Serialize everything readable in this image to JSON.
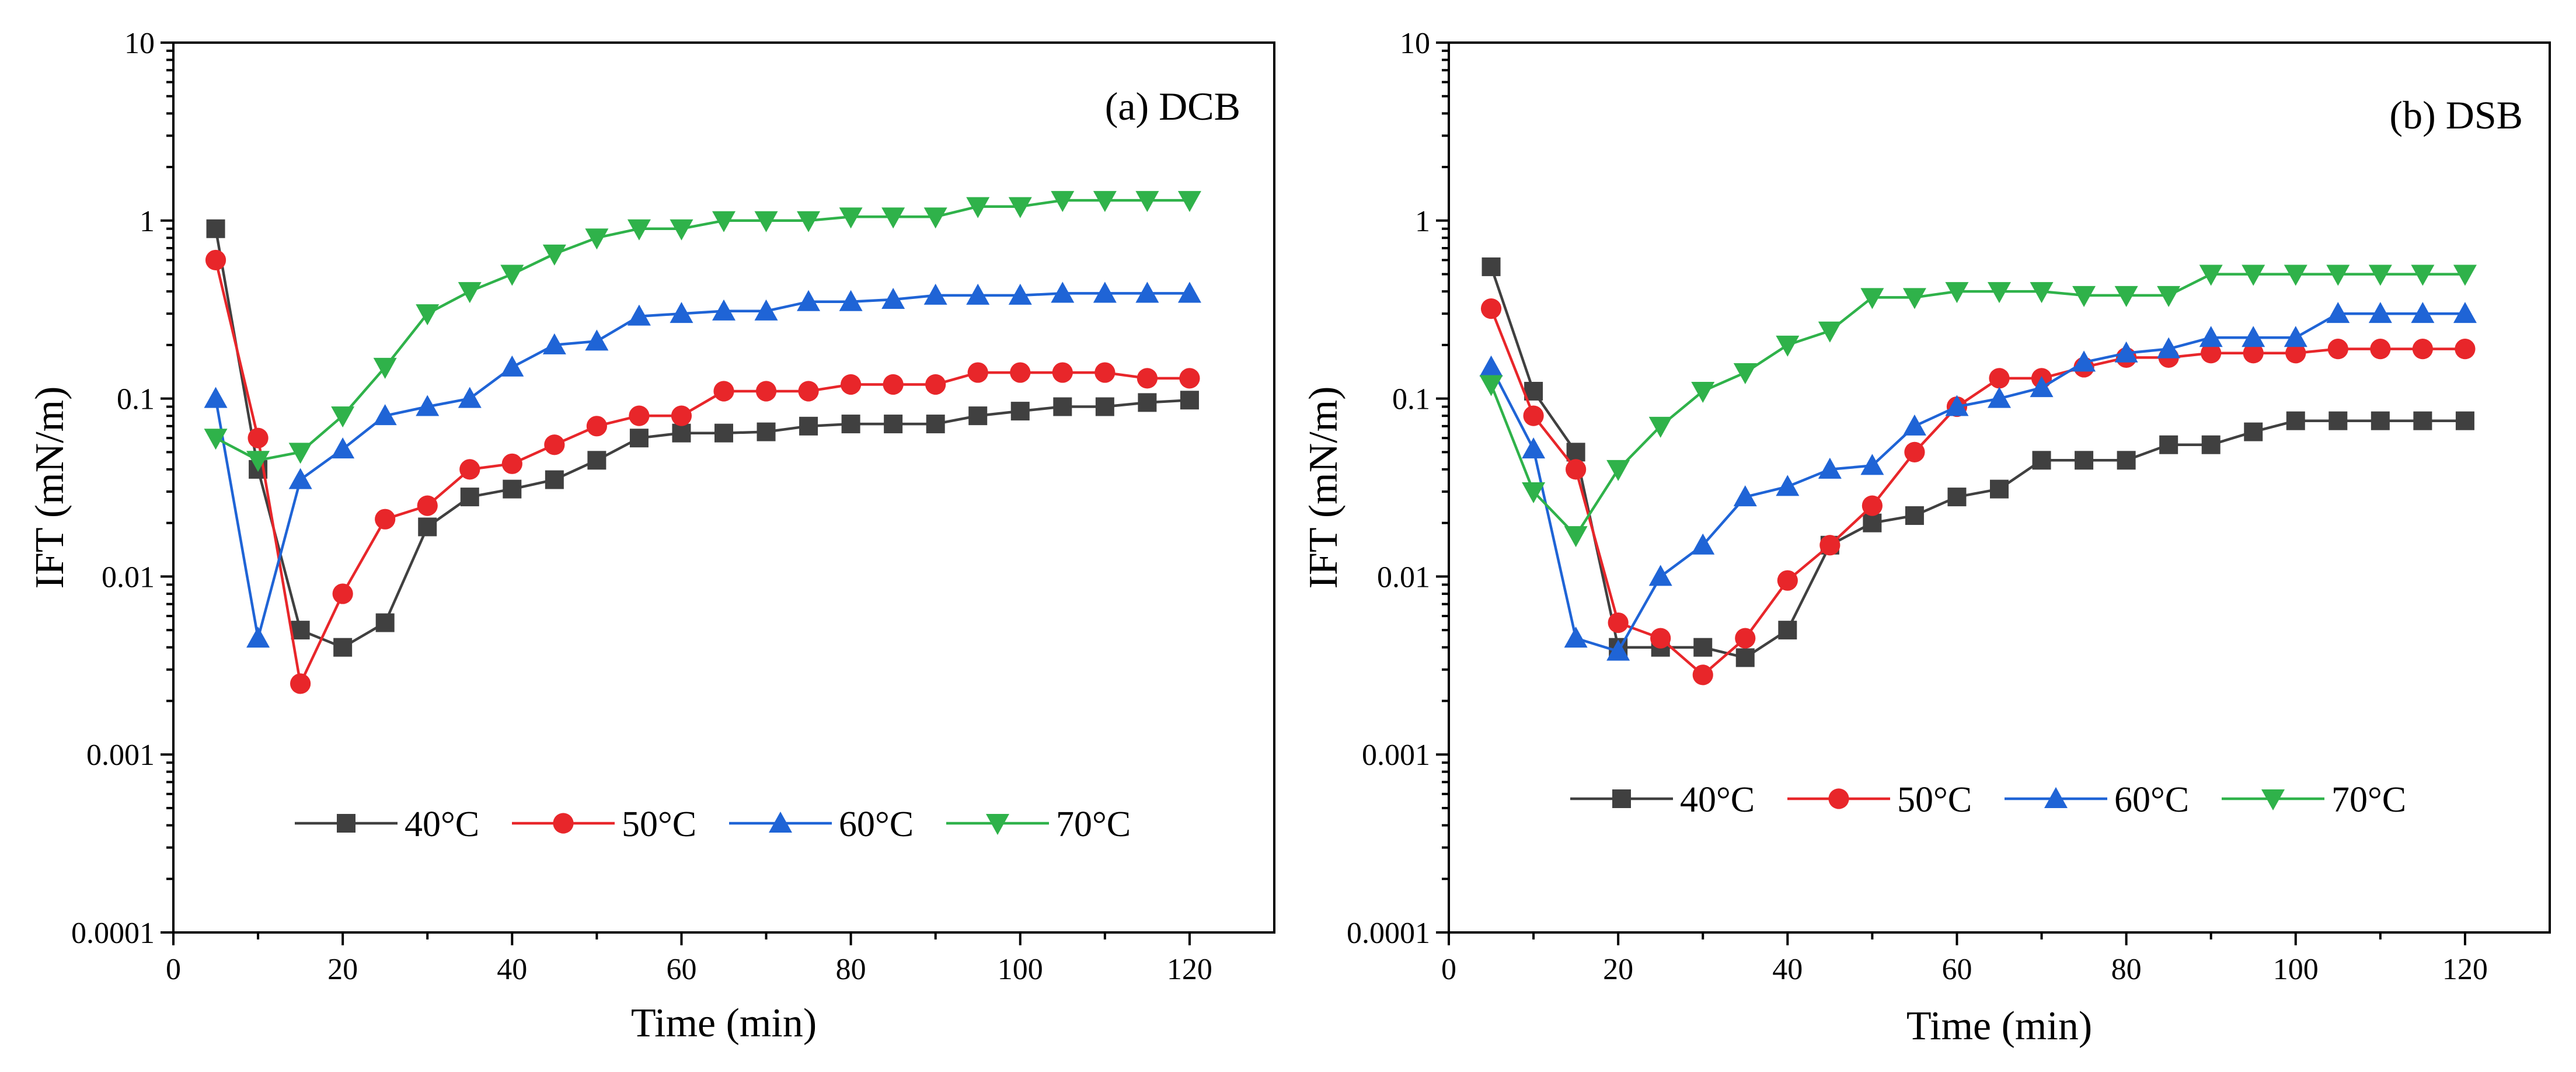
{
  "chart_data": [
    {
      "type": "line",
      "title": "(a) DCB",
      "xlabel": "Time (min)",
      "ylabel": "IFT (mN/m)",
      "yscale": "log",
      "xlim": [
        0,
        130
      ],
      "ylim": [
        0.0001,
        10
      ],
      "xticks": [
        "0",
        "20",
        "40",
        "60",
        "80",
        "100",
        "120"
      ],
      "yticks": [
        "0.0001",
        "0.001",
        "0.01",
        "0.1",
        "1",
        "10"
      ],
      "legend_position": "lower-center",
      "x": [
        5,
        10,
        15,
        20,
        25,
        30,
        35,
        40,
        45,
        50,
        55,
        60,
        65,
        70,
        75,
        80,
        85,
        90,
        95,
        100,
        105,
        110,
        115,
        120
      ],
      "series": [
        {
          "name": "40°C",
          "color": "#404040",
          "marker": "square",
          "values": [
            0.9,
            0.04,
            0.005,
            0.004,
            0.0055,
            0.019,
            0.028,
            0.031,
            0.035,
            0.045,
            0.06,
            0.064,
            0.064,
            0.065,
            0.07,
            0.072,
            0.072,
            0.072,
            0.08,
            0.085,
            0.09,
            0.09,
            0.095,
            0.098
          ]
        },
        {
          "name": "50°C",
          "color": "#e8262a",
          "marker": "circle",
          "values": [
            0.6,
            0.06,
            0.0025,
            0.008,
            0.021,
            0.025,
            0.04,
            0.043,
            0.055,
            0.07,
            0.08,
            0.08,
            0.11,
            0.11,
            0.11,
            0.12,
            0.12,
            0.12,
            0.14,
            0.14,
            0.14,
            0.14,
            0.13,
            0.13
          ]
        },
        {
          "name": "60°C",
          "color": "#1f64d6",
          "marker": "triangle-up",
          "values": [
            0.1,
            0.0045,
            0.035,
            0.052,
            0.08,
            0.09,
            0.1,
            0.15,
            0.2,
            0.21,
            0.29,
            0.3,
            0.31,
            0.31,
            0.35,
            0.35,
            0.36,
            0.38,
            0.38,
            0.38,
            0.39,
            0.39,
            0.39,
            0.39
          ]
        },
        {
          "name": "70°C",
          "color": "#2fb24a",
          "marker": "triangle-down",
          "values": [
            0.06,
            0.045,
            0.05,
            0.08,
            0.15,
            0.3,
            0.4,
            0.5,
            0.65,
            0.8,
            0.9,
            0.9,
            1.0,
            1.0,
            1.0,
            1.05,
            1.05,
            1.05,
            1.2,
            1.2,
            1.3,
            1.3,
            1.3,
            1.3
          ]
        }
      ]
    },
    {
      "type": "line",
      "title": "(b) DSB",
      "xlabel": "Time (min)",
      "ylabel": "IFT (mN/m)",
      "yscale": "log",
      "xlim": [
        0,
        130
      ],
      "ylim": [
        0.0001,
        10
      ],
      "xticks": [
        "0",
        "20",
        "40",
        "60",
        "80",
        "100",
        "120"
      ],
      "yticks": [
        "0.0001",
        "0.001",
        "0.01",
        "0.1",
        "1",
        "10"
      ],
      "legend_position": "lower-center",
      "x": [
        5,
        10,
        15,
        20,
        25,
        30,
        35,
        40,
        45,
        50,
        55,
        60,
        65,
        70,
        75,
        80,
        85,
        90,
        95,
        100,
        105,
        110,
        115,
        120
      ],
      "series": [
        {
          "name": "40°C",
          "color": "#404040",
          "marker": "square",
          "values": [
            0.55,
            0.11,
            0.05,
            0.004,
            0.004,
            0.004,
            0.0035,
            0.005,
            0.015,
            0.02,
            0.022,
            0.028,
            0.031,
            0.045,
            0.045,
            0.045,
            0.055,
            0.055,
            0.065,
            0.075,
            0.075,
            0.075,
            0.075,
            0.075
          ]
        },
        {
          "name": "50°C",
          "color": "#e8262a",
          "marker": "circle",
          "values": [
            0.32,
            0.08,
            0.04,
            0.0055,
            0.0045,
            0.0028,
            0.0045,
            0.0095,
            0.015,
            0.025,
            0.05,
            0.09,
            0.13,
            0.13,
            0.15,
            0.17,
            0.17,
            0.18,
            0.18,
            0.18,
            0.19,
            0.19,
            0.19,
            0.19
          ]
        },
        {
          "name": "60°C",
          "color": "#1f64d6",
          "marker": "triangle-up",
          "values": [
            0.15,
            0.052,
            0.0045,
            0.0038,
            0.01,
            0.015,
            0.028,
            0.032,
            0.04,
            0.042,
            0.07,
            0.09,
            0.1,
            0.115,
            0.16,
            0.18,
            0.19,
            0.22,
            0.22,
            0.22,
            0.3,
            0.3,
            0.3,
            0.3
          ]
        },
        {
          "name": "70°C",
          "color": "#2fb24a",
          "marker": "triangle-down",
          "values": [
            0.12,
            0.03,
            0.017,
            0.04,
            0.07,
            0.11,
            0.14,
            0.2,
            0.24,
            0.37,
            0.37,
            0.4,
            0.4,
            0.4,
            0.38,
            0.38,
            0.38,
            0.5,
            0.5,
            0.5,
            0.5,
            0.5,
            0.5,
            0.5
          ]
        }
      ]
    }
  ]
}
